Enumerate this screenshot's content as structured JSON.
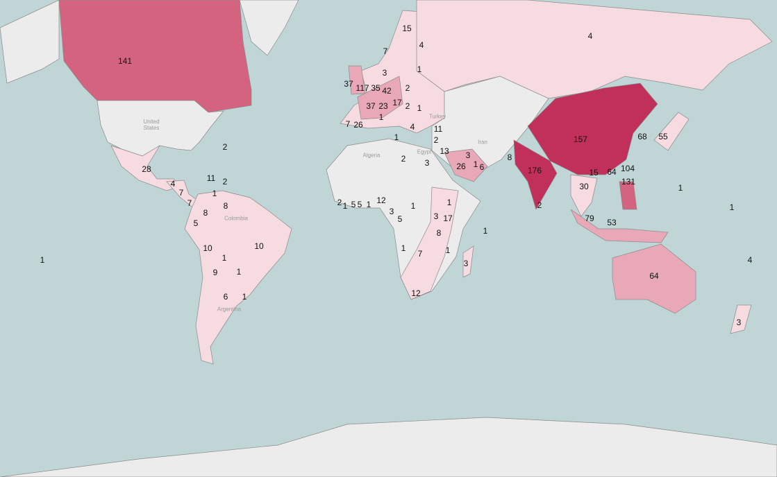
{
  "colors": {
    "ocean": "#c0d5d5",
    "no_data": "#ececec",
    "low": "#f6dbe1",
    "mid": "#e8a8b8",
    "high": "#d4637f",
    "max": "#c0305a",
    "border": "#8a8a8a"
  },
  "basemap_labels": [
    "United States",
    "Algeria",
    "Iran",
    "Egypt",
    "Turkey",
    "Colombia",
    "Argentina"
  ],
  "country_values": [
    {
      "region": "Canada",
      "value": "141"
    },
    {
      "region": "China",
      "value": "157"
    },
    {
      "region": "India",
      "value": "176"
    },
    {
      "region": "Russia",
      "value": "4"
    },
    {
      "region": "Australia",
      "value": "64"
    },
    {
      "region": "Mexico",
      "value": "28"
    },
    {
      "region": "Brazil",
      "value": "10"
    },
    {
      "region": "Peru",
      "value": "10"
    },
    {
      "region": "Colombia",
      "value": "8"
    },
    {
      "region": "Venezuela",
      "value": "8"
    },
    {
      "region": "Ecuador",
      "value": "5"
    },
    {
      "region": "Bolivia",
      "value": "1"
    },
    {
      "region": "Chile",
      "value": "9"
    },
    {
      "region": "Paraguay",
      "value": "1"
    },
    {
      "region": "Argentina",
      "value": "6"
    },
    {
      "region": "Uruguay",
      "value": "1"
    },
    {
      "region": "Guatemala",
      "value": "4"
    },
    {
      "region": "Nicaragua",
      "value": "7"
    },
    {
      "region": "Panama",
      "value": "7"
    },
    {
      "region": "Dominican Republic",
      "value": "11"
    },
    {
      "region": "Puerto Rico",
      "value": "2"
    },
    {
      "region": "Caribbean",
      "value": "1"
    },
    {
      "region": "Bermuda",
      "value": "2"
    },
    {
      "region": "Pacific",
      "value": "1"
    },
    {
      "region": "Ireland",
      "value": "37"
    },
    {
      "region": "United Kingdom",
      "value": "117"
    },
    {
      "region": "Netherlands",
      "value": "35"
    },
    {
      "region": "Germany",
      "value": "42"
    },
    {
      "region": "France",
      "value": "37"
    },
    {
      "region": "Switzerland",
      "value": "23"
    },
    {
      "region": "Austria",
      "value": "17"
    },
    {
      "region": "Hungary",
      "value": "2"
    },
    {
      "region": "Romania",
      "value": "1"
    },
    {
      "region": "Poland",
      "value": "2"
    },
    {
      "region": "Denmark",
      "value": "3"
    },
    {
      "region": "Norway",
      "value": "7"
    },
    {
      "region": "Sweden",
      "value": "15"
    },
    {
      "region": "Finland",
      "value": "4"
    },
    {
      "region": "Latvia",
      "value": "1"
    },
    {
      "region": "Italy",
      "value": "1"
    },
    {
      "region": "Portugal",
      "value": "7"
    },
    {
      "region": "Spain",
      "value": "26"
    },
    {
      "region": "Greece",
      "value": "4"
    },
    {
      "region": "Malta",
      "value": "1"
    },
    {
      "region": "Turkey",
      "value": "11"
    },
    {
      "region": "Cyprus",
      "value": "2"
    },
    {
      "region": "Israel",
      "value": "13"
    },
    {
      "region": "Libya",
      "value": "2"
    },
    {
      "region": "Egypt",
      "value": "3"
    },
    {
      "region": "Saudi Arabia",
      "value": "26"
    },
    {
      "region": "Kuwait",
      "value": "3"
    },
    {
      "region": "Qatar",
      "value": "1"
    },
    {
      "region": "UAE",
      "value": "6"
    },
    {
      "region": "Pakistan",
      "value": "8"
    },
    {
      "region": "Sierra Leone",
      "value": "2"
    },
    {
      "region": "Liberia",
      "value": "1"
    },
    {
      "region": "Cote d'Ivoire",
      "value": "5"
    },
    {
      "region": "Ghana",
      "value": "5"
    },
    {
      "region": "Togo",
      "value": "1"
    },
    {
      "region": "Nigeria",
      "value": "12"
    },
    {
      "region": "Cameroon",
      "value": "3"
    },
    {
      "region": "Central African Rep.",
      "value": "1"
    },
    {
      "region": "Gabon",
      "value": "5"
    },
    {
      "region": "Ethiopia",
      "value": "1"
    },
    {
      "region": "Uganda",
      "value": "3"
    },
    {
      "region": "Kenya",
      "value": "17"
    },
    {
      "region": "Tanzania",
      "value": "8"
    },
    {
      "region": "Angola",
      "value": "1"
    },
    {
      "region": "Zambia",
      "value": "7"
    },
    {
      "region": "Mozambique",
      "value": "1"
    },
    {
      "region": "Madagascar",
      "value": "3"
    },
    {
      "region": "South Africa",
      "value": "12"
    },
    {
      "region": "Seychelles",
      "value": "1"
    },
    {
      "region": "Sri Lanka",
      "value": "2"
    },
    {
      "region": "Vietnam",
      "value": "15"
    },
    {
      "region": "Hong Kong",
      "value": "64"
    },
    {
      "region": "Taiwan",
      "value": "104"
    },
    {
      "region": "Philippines",
      "value": "131"
    },
    {
      "region": "Thailand",
      "value": "30"
    },
    {
      "region": "Malaysia",
      "value": "79"
    },
    {
      "region": "Indonesia",
      "value": "53"
    },
    {
      "region": "South Korea",
      "value": "68"
    },
    {
      "region": "Japan",
      "value": "55"
    },
    {
      "region": "Guam",
      "value": "1"
    },
    {
      "region": "Marshall Islands",
      "value": "1"
    },
    {
      "region": "Fiji",
      "value": "4"
    },
    {
      "region": "New Zealand",
      "value": "3"
    }
  ]
}
